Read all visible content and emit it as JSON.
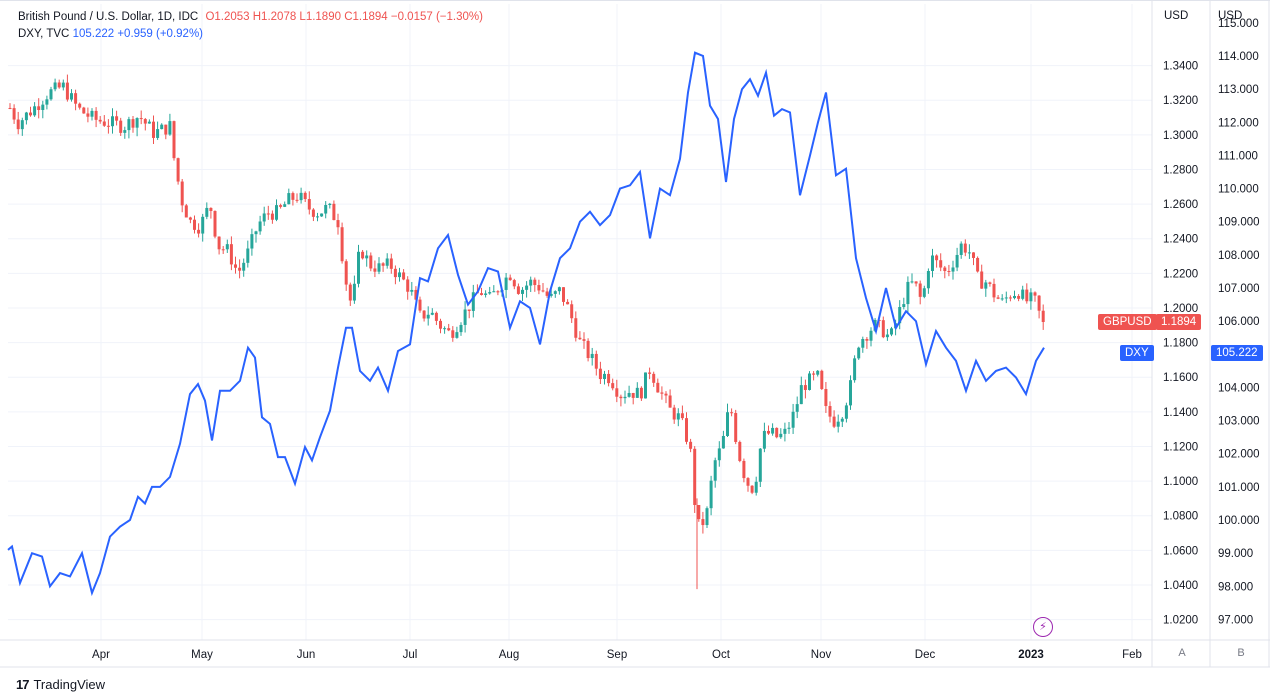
{
  "legend": {
    "gbp_symbol": "British Pound / U.S. Dollar, 1D, IDC",
    "gbp_ohlc": "O1.2053  H1.2078  L1.1890  C1.1894  −0.0157 (−1.30%)",
    "dxy_symbol": "DXY, TVC",
    "dxy_value": "105.222  +0.959 (+0.92%)"
  },
  "axis_units": {
    "left": "USD",
    "right": "USD"
  },
  "tags": {
    "gbp_name": "GBPUSD",
    "gbp_value": "1.1894",
    "dxy_name": "DXY",
    "dxy_value": "105.222"
  },
  "axis_buttons": {
    "a": "A",
    "b": "B"
  },
  "footer": {
    "brand": "TradingView",
    "logo": "17"
  },
  "colors": {
    "up": "#26a69a",
    "down": "#ef5350",
    "dxy": "#2962ff"
  },
  "chart_data": {
    "type": "candlestick+line",
    "x_labels": [
      "Apr",
      "May",
      "Jun",
      "Jul",
      "Aug",
      "Sep",
      "Oct",
      "Nov",
      "Dec",
      "2023",
      "Feb"
    ],
    "gbp_axis_ticks": [
      "1.3400",
      "1.3200",
      "1.3000",
      "1.2800",
      "1.2600",
      "1.2400",
      "1.2200",
      "1.2000",
      "1.1800",
      "1.1600",
      "1.1400",
      "1.1200",
      "1.1000",
      "1.0800",
      "1.0600",
      "1.0400",
      "1.0200"
    ],
    "dxy_axis_ticks": [
      "115.000",
      "114.000",
      "113.000",
      "112.000",
      "111.000",
      "110.000",
      "109.000",
      "108.000",
      "107.000",
      "106.000",
      "105.000",
      "104.000",
      "103.000",
      "102.000",
      "101.000",
      "100.000",
      "99.000",
      "98.000",
      "97.000"
    ],
    "gbp_range": [
      1.0082,
      1.3756
    ],
    "dxy_range": [
      96.38,
      115.57
    ],
    "gbpusd_closes": [
      [
        3,
        1.323
      ],
      [
        18,
        1.307
      ],
      [
        33,
        1.315
      ],
      [
        48,
        1.324
      ],
      [
        63,
        1.328
      ],
      [
        78,
        1.315
      ],
      [
        94,
        1.309
      ],
      [
        109,
        1.307
      ],
      [
        124,
        1.305
      ],
      [
        139,
        1.311
      ],
      [
        154,
        1.301
      ],
      [
        170,
        1.305
      ],
      [
        175,
        1.282
      ],
      [
        182,
        1.262
      ],
      [
        190,
        1.25
      ],
      [
        200,
        1.247
      ],
      [
        210,
        1.26
      ],
      [
        218,
        1.236
      ],
      [
        228,
        1.233
      ],
      [
        238,
        1.22
      ],
      [
        248,
        1.232
      ],
      [
        258,
        1.248
      ],
      [
        268,
        1.255
      ],
      [
        278,
        1.255
      ],
      [
        288,
        1.262
      ],
      [
        298,
        1.265
      ],
      [
        308,
        1.258
      ],
      [
        318,
        1.255
      ],
      [
        328,
        1.258
      ],
      [
        338,
        1.25
      ],
      [
        345,
        1.218
      ],
      [
        352,
        1.2
      ],
      [
        360,
        1.235
      ],
      [
        370,
        1.225
      ],
      [
        380,
        1.223
      ],
      [
        390,
        1.225
      ],
      [
        400,
        1.218
      ],
      [
        410,
        1.211
      ],
      [
        420,
        1.195
      ],
      [
        430,
        1.198
      ],
      [
        440,
        1.19
      ],
      [
        450,
        1.185
      ],
      [
        460,
        1.193
      ],
      [
        470,
        1.202
      ],
      [
        480,
        1.21
      ],
      [
        490,
        1.205
      ],
      [
        500,
        1.213
      ],
      [
        510,
        1.22
      ],
      [
        520,
        1.21
      ],
      [
        530,
        1.215
      ],
      [
        540,
        1.212
      ],
      [
        550,
        1.205
      ],
      [
        560,
        1.21
      ],
      [
        570,
        1.197
      ],
      [
        580,
        1.18
      ],
      [
        590,
        1.172
      ],
      [
        600,
        1.162
      ],
      [
        610,
        1.16
      ],
      [
        620,
        1.15
      ],
      [
        630,
        1.152
      ],
      [
        640,
        1.15
      ],
      [
        650,
        1.165
      ],
      [
        660,
        1.152
      ],
      [
        670,
        1.141
      ],
      [
        680,
        1.136
      ],
      [
        690,
        1.12
      ],
      [
        697,
        1.073
      ],
      [
        706,
        1.078
      ],
      [
        714,
        1.11
      ],
      [
        722,
        1.12
      ],
      [
        730,
        1.145
      ],
      [
        738,
        1.118
      ],
      [
        746,
        1.1
      ],
      [
        754,
        1.095
      ],
      [
        762,
        1.125
      ],
      [
        770,
        1.128
      ],
      [
        778,
        1.125
      ],
      [
        786,
        1.128
      ],
      [
        794,
        1.139
      ],
      [
        802,
        1.155
      ],
      [
        810,
        1.158
      ],
      [
        818,
        1.16
      ],
      [
        826,
        1.14
      ],
      [
        834,
        1.135
      ],
      [
        842,
        1.14
      ],
      [
        850,
        1.153
      ],
      [
        858,
        1.18
      ],
      [
        866,
        1.185
      ],
      [
        874,
        1.19
      ],
      [
        882,
        1.188
      ],
      [
        890,
        1.182
      ],
      [
        898,
        1.195
      ],
      [
        906,
        1.21
      ],
      [
        914,
        1.215
      ],
      [
        922,
        1.203
      ],
      [
        930,
        1.23
      ],
      [
        938,
        1.225
      ],
      [
        946,
        1.22
      ],
      [
        954,
        1.228
      ],
      [
        962,
        1.237
      ],
      [
        970,
        1.232
      ],
      [
        978,
        1.216
      ],
      [
        986,
        1.215
      ],
      [
        994,
        1.208
      ],
      [
        1002,
        1.203
      ],
      [
        1010,
        1.208
      ],
      [
        1018,
        1.21
      ],
      [
        1026,
        1.204
      ],
      [
        1034,
        1.205
      ],
      [
        1044,
        1.189
      ]
    ],
    "dxy_line": [
      [
        8,
        99.1
      ],
      [
        12,
        99.2
      ],
      [
        20,
        98.1
      ],
      [
        32,
        99.0
      ],
      [
        42,
        98.9
      ],
      [
        50,
        98.0
      ],
      [
        60,
        98.4
      ],
      [
        70,
        98.3
      ],
      [
        82,
        99.0
      ],
      [
        92,
        97.8
      ],
      [
        100,
        98.4
      ],
      [
        110,
        99.5
      ],
      [
        120,
        99.8
      ],
      [
        130,
        100.0
      ],
      [
        138,
        100.7
      ],
      [
        145,
        100.5
      ],
      [
        152,
        101.0
      ],
      [
        160,
        101.0
      ],
      [
        170,
        101.3
      ],
      [
        180,
        102.3
      ],
      [
        190,
        103.8
      ],
      [
        198,
        104.1
      ],
      [
        205,
        103.6
      ],
      [
        212,
        102.4
      ],
      [
        220,
        103.9
      ],
      [
        230,
        103.9
      ],
      [
        240,
        104.2
      ],
      [
        248,
        105.2
      ],
      [
        255,
        104.9
      ],
      [
        262,
        103.1
      ],
      [
        270,
        102.9
      ],
      [
        278,
        101.9
      ],
      [
        285,
        101.9
      ],
      [
        295,
        101.1
      ],
      [
        305,
        102.2
      ],
      [
        312,
        101.8
      ],
      [
        320,
        102.5
      ],
      [
        330,
        103.3
      ],
      [
        338,
        104.6
      ],
      [
        346,
        105.8
      ],
      [
        352,
        105.8
      ],
      [
        360,
        104.5
      ],
      [
        370,
        104.2
      ],
      [
        378,
        104.6
      ],
      [
        388,
        103.9
      ],
      [
        398,
        105.1
      ],
      [
        410,
        105.3
      ],
      [
        420,
        107.3
      ],
      [
        428,
        107.2
      ],
      [
        438,
        108.2
      ],
      [
        448,
        108.6
      ],
      [
        458,
        107.4
      ],
      [
        468,
        106.5
      ],
      [
        478,
        106.9
      ],
      [
        488,
        107.6
      ],
      [
        498,
        107.5
      ],
      [
        510,
        105.8
      ],
      [
        520,
        106.6
      ],
      [
        530,
        106.4
      ],
      [
        540,
        105.3
      ],
      [
        550,
        106.9
      ],
      [
        560,
        107.9
      ],
      [
        570,
        108.2
      ],
      [
        580,
        109.0
      ],
      [
        590,
        109.3
      ],
      [
        600,
        108.9
      ],
      [
        610,
        109.2
      ],
      [
        620,
        110.0
      ],
      [
        630,
        110.1
      ],
      [
        640,
        110.5
      ],
      [
        650,
        108.5
      ],
      [
        660,
        110.0
      ],
      [
        670,
        109.8
      ],
      [
        680,
        110.9
      ],
      [
        688,
        112.9
      ],
      [
        695,
        114.1
      ],
      [
        703,
        114.0
      ],
      [
        710,
        112.5
      ],
      [
        718,
        112.1
      ],
      [
        726,
        110.2
      ],
      [
        734,
        112.1
      ],
      [
        742,
        113.0
      ],
      [
        750,
        113.3
      ],
      [
        758,
        112.8
      ],
      [
        766,
        113.5
      ],
      [
        774,
        112.2
      ],
      [
        782,
        112.4
      ],
      [
        790,
        112.3
      ],
      [
        800,
        109.8
      ],
      [
        810,
        111.0
      ],
      [
        818,
        112.0
      ],
      [
        826,
        112.9
      ],
      [
        836,
        110.4
      ],
      [
        846,
        110.6
      ],
      [
        856,
        107.9
      ],
      [
        866,
        106.7
      ],
      [
        876,
        105.7
      ],
      [
        886,
        107.0
      ],
      [
        896,
        105.8
      ],
      [
        906,
        106.3
      ],
      [
        916,
        106.0
      ],
      [
        926,
        104.7
      ],
      [
        936,
        105.7
      ],
      [
        946,
        105.2
      ],
      [
        956,
        104.8
      ],
      [
        966,
        103.9
      ],
      [
        976,
        104.8
      ],
      [
        986,
        104.2
      ],
      [
        996,
        104.5
      ],
      [
        1006,
        104.6
      ],
      [
        1016,
        104.3
      ],
      [
        1026,
        103.8
      ],
      [
        1036,
        104.8
      ],
      [
        1044,
        105.2
      ]
    ]
  }
}
